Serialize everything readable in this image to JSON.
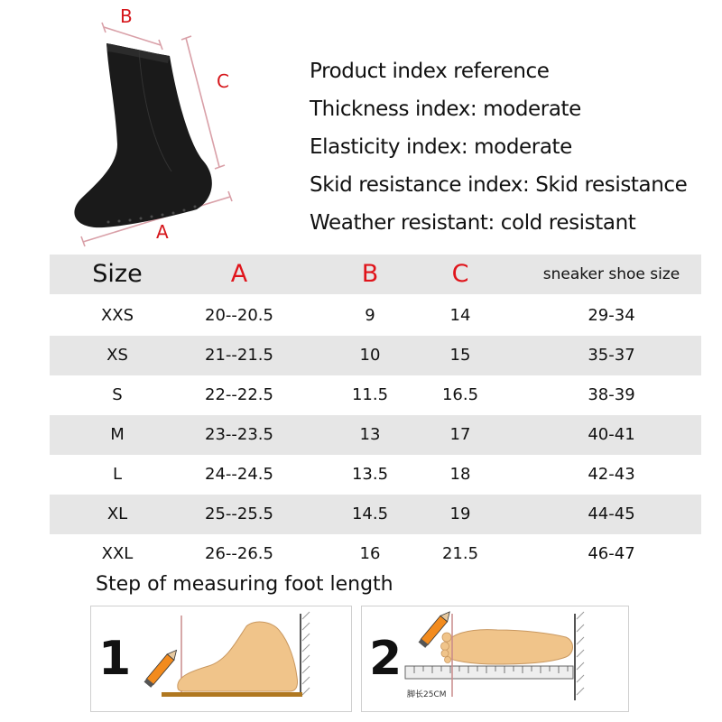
{
  "dimension_labels": {
    "a": "A",
    "b": "B",
    "c": "C"
  },
  "product_info": [
    "Product index reference",
    "Thickness index: moderate",
    "Elasticity index: moderate",
    "Skid resistance index: Skid resistance",
    "Weather resistant: cold resistant"
  ],
  "size_table": {
    "headers": [
      "Size",
      "A",
      "B",
      "C",
      "sneaker shoe size"
    ],
    "rows": [
      [
        "XXS",
        "20--20.5",
        "9",
        "14",
        "29-34"
      ],
      [
        "XS",
        "21--21.5",
        "10",
        "15",
        "35-37"
      ],
      [
        "S",
        "22--22.5",
        "11.5",
        "16.5",
        "38-39"
      ],
      [
        "M",
        "23--23.5",
        "13",
        "17",
        "40-41"
      ],
      [
        "L",
        "24--24.5",
        "13.5",
        "18",
        "42-43"
      ],
      [
        "XL",
        "25--25.5",
        "14.5",
        "19",
        "44-45"
      ],
      [
        "XXL",
        "26--26.5",
        "16",
        "21.5",
        "46-47"
      ]
    ]
  },
  "steps": {
    "title": "Step of measuring foot length",
    "step_numbers": [
      "1",
      "2"
    ],
    "ruler_label": "脚长25CM"
  },
  "colors": {
    "dimension_red": "#d6171c",
    "row_shade": "#e6e6e6",
    "sock": "#1a1a1a",
    "foot": "#f0c48a"
  }
}
